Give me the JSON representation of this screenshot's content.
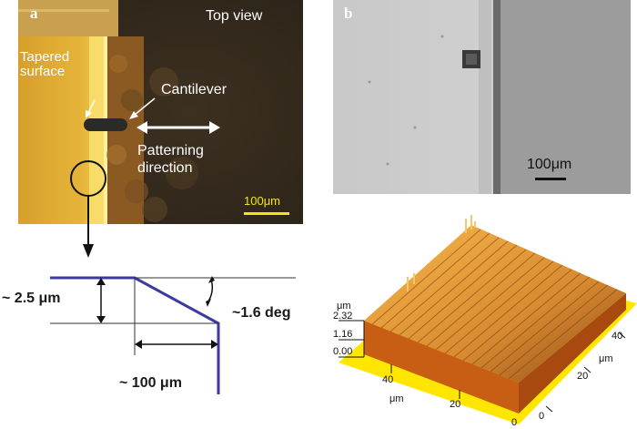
{
  "panel_a": {
    "letter": "a",
    "title": "Top view",
    "tapered_label_line1": "Tapered",
    "tapered_label_line2": "surface",
    "cantilever_label": "Cantilever",
    "patterning_line1": "Patterning",
    "patterning_line2": "direction",
    "scale_bar": "100μm"
  },
  "panel_b": {
    "letter": "b",
    "scale_bar": "100μm"
  },
  "schematic": {
    "height_label": "~ 2.5 μm",
    "angle_label": "~1.6 deg",
    "length_label": "~ 100 μm"
  },
  "plot3d": {
    "z_unit": "μm",
    "z_ticks": [
      "2.32",
      "1.16",
      "0.00"
    ],
    "x_ticks": [
      "40",
      "20",
      "0"
    ],
    "x_unit": "μm",
    "y_ticks": [
      "40",
      "20",
      "0"
    ],
    "y_unit": "μm",
    "colors": {
      "surface_light": "#f0a830",
      "surface_dark": "#b86a1e",
      "base": "#ffe600",
      "side": "#c05a10"
    }
  }
}
